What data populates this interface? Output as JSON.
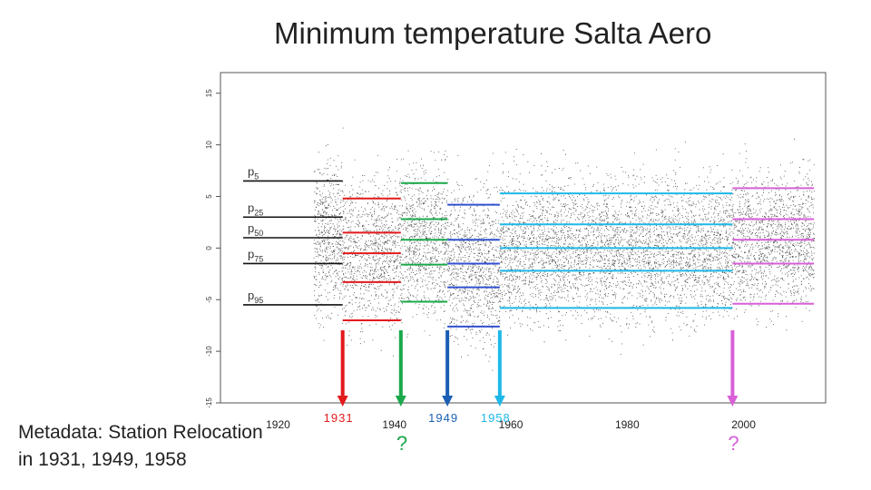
{
  "title": "Minimum temperature Salta Aero",
  "metadata_note": {
    "line1": "Metadata: Station Relocation",
    "line2": "in 1931, 1949, 1958"
  },
  "colors": {
    "black": "#111111",
    "red": "#e31a1c",
    "green": "#1aa84a",
    "blue": "#3050d0",
    "cyan": "#1eb8e8",
    "magenta": "#d860d8",
    "darkblue": "#1a5fb4"
  },
  "chart_data": {
    "type": "scatter",
    "title": "Minimum temperature Salta Aero",
    "ylim": [
      -15,
      17
    ],
    "xlim": [
      1910,
      2014
    ],
    "y_ticks": [
      -15,
      -10,
      -5,
      0,
      5,
      10,
      15
    ],
    "x_ticks": [
      1920,
      1940,
      1960,
      1980,
      2000
    ],
    "x_tick_labels": [
      "1920",
      "1940",
      "1960",
      "1980",
      "2000"
    ],
    "data_start": 1926,
    "data_end": 2012,
    "percentile_labels": [
      {
        "base": "p",
        "sub": "5",
        "value": 6.5
      },
      {
        "base": "p",
        "sub": "25",
        "value": 3.0
      },
      {
        "base": "p",
        "sub": "50",
        "value": 1.0
      },
      {
        "base": "p",
        "sub": "75",
        "value": -1.5
      },
      {
        "base": "p",
        "sub": "95",
        "value": -5.5
      }
    ],
    "segments": [
      {
        "name": "1926-1931",
        "color": "#111111",
        "x0": 1926,
        "x1": 1931,
        "p": [
          6.5,
          3.0,
          1.0,
          -1.5,
          -5.5
        ]
      },
      {
        "name": "1931-1941",
        "color": "#e31a1c",
        "x0": 1931,
        "x1": 1941,
        "p": [
          4.8,
          1.5,
          -0.5,
          -3.3,
          -7.0
        ]
      },
      {
        "name": "1941-1949",
        "color": "#1aa84a",
        "x0": 1941,
        "x1": 1949,
        "p": [
          6.3,
          2.8,
          0.8,
          -1.6,
          -5.2
        ]
      },
      {
        "name": "1949-1958",
        "color": "#3050d0",
        "x0": 1949,
        "x1": 1958,
        "p": [
          4.2,
          0.8,
          -1.5,
          -3.8,
          -7.6
        ]
      },
      {
        "name": "1958-1998",
        "color": "#1eb8e8",
        "x0": 1958,
        "x1": 1998,
        "p": [
          5.3,
          2.3,
          0.0,
          -2.2,
          -5.8
        ]
      },
      {
        "name": "1998-2012",
        "color": "#d860d8",
        "x0": 1998,
        "x1": 2012,
        "p": [
          5.8,
          2.8,
          0.8,
          -1.5,
          -5.4
        ]
      }
    ],
    "events": [
      {
        "year": 1931,
        "label": "1931",
        "color": "#e31a1c"
      },
      {
        "year": 1941,
        "label": "?",
        "color": "#1aa84a"
      },
      {
        "year": 1949,
        "label": "1949",
        "color": "#1a5fb4"
      },
      {
        "year": 1958,
        "label": "1958",
        "color": "#1eb8e8"
      },
      {
        "year": 1998,
        "label": "?",
        "color": "#d860d8"
      }
    ]
  }
}
